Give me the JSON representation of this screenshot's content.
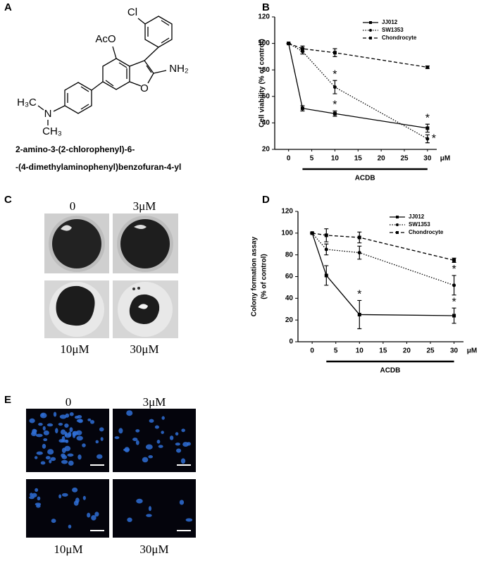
{
  "panel_a": {
    "label": "A",
    "atoms": {
      "cl": "Cl",
      "aco": "AcO",
      "nh2": "NH₂",
      "o": "O",
      "n": "N",
      "h3c": "H₃C",
      "ch3": "CH₃"
    },
    "caption": [
      "2-amino-3-(2-chlorophenyl)-6-",
      "-(4-dimethylaminophenyl)benzofuran-4-yl"
    ]
  },
  "panel_b": {
    "label": "B"
  },
  "panel_c": {
    "label": "C",
    "images": [
      "0",
      "3μM",
      "10μM",
      "30μM"
    ]
  },
  "panel_d": {
    "label": "D"
  },
  "panel_e": {
    "label": "E",
    "images": [
      "0",
      "3μM",
      "10μM",
      "30μM"
    ]
  },
  "chart_data": [
    {
      "type": "line",
      "ylabel": [
        "Cell viability (% of control)"
      ],
      "xlabel": "ACDB",
      "x_unit": "μM",
      "x": [
        0,
        3,
        10,
        30
      ],
      "xlim": [
        -3,
        32
      ],
      "xticks": [
        0,
        5,
        10,
        15,
        20,
        25,
        30
      ],
      "ylim": [
        20,
        120
      ],
      "yticks": [
        20,
        40,
        60,
        80,
        100,
        120
      ],
      "legend": "upper right",
      "series": [
        {
          "name": "JJ012",
          "color": "#000000",
          "dash": "solid",
          "marker": "square",
          "values": [
            100,
            51,
            47,
            36
          ],
          "errors": [
            0,
            2,
            2,
            3
          ],
          "significance": [
            null,
            null,
            "*",
            "*"
          ]
        },
        {
          "name": "SW1353",
          "color": "#000000",
          "dash": "dotted",
          "marker": "circle",
          "values": [
            100,
            94,
            67,
            28
          ],
          "errors": [
            0,
            2,
            5,
            3
          ],
          "significance": [
            null,
            null,
            "*",
            "*"
          ]
        },
        {
          "name": "Chondrocyte",
          "color": "#000000",
          "dash": "dashed",
          "marker": "square",
          "values": [
            100,
            96,
            93,
            82
          ],
          "errors": [
            0,
            2,
            3,
            1
          ],
          "significance": [
            null,
            null,
            null,
            null
          ]
        }
      ]
    },
    {
      "type": "line",
      "ylabel": [
        "Colony formation assay",
        "(% of control)"
      ],
      "xlabel": "ACDB",
      "x_unit": "μM",
      "x": [
        0,
        3,
        10,
        30
      ],
      "xlim": [
        -3,
        32
      ],
      "xticks": [
        0,
        5,
        10,
        15,
        20,
        25,
        30
      ],
      "ylim": [
        0,
        120
      ],
      "yticks": [
        0,
        20,
        40,
        60,
        80,
        100,
        120
      ],
      "legend": "upper right",
      "series": [
        {
          "name": "JJ012",
          "color": "#000000",
          "dash": "solid",
          "marker": "square",
          "values": [
            100,
            61,
            25,
            24
          ],
          "errors": [
            0,
            9,
            13,
            7
          ],
          "significance": [
            null,
            null,
            "*",
            "*"
          ]
        },
        {
          "name": "SW1353",
          "color": "#000000",
          "dash": "dotted",
          "marker": "circle",
          "values": [
            100,
            85,
            82,
            52
          ],
          "errors": [
            0,
            5,
            6,
            9
          ],
          "significance": [
            null,
            null,
            null,
            "*"
          ]
        },
        {
          "name": "Chondrocyte",
          "color": "#000000",
          "dash": "dashed",
          "marker": "square",
          "values": [
            100,
            98,
            96,
            75
          ],
          "errors": [
            0,
            6,
            5,
            2
          ],
          "significance": [
            null,
            null,
            null,
            null
          ]
        }
      ]
    }
  ]
}
